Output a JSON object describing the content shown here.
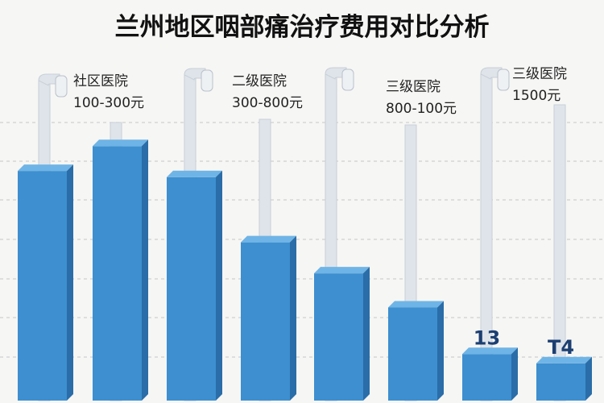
{
  "chart_data": {
    "type": "bar",
    "title": "兰州地区咽部痛治疗费用对比分析",
    "xlabel": "",
    "ylabel": "",
    "grid": true,
    "values": [
      74,
      82,
      72,
      51,
      41,
      30,
      15,
      12
    ],
    "bar_labels": [
      "",
      "",
      "",
      "",
      "",
      "",
      "13",
      "T4"
    ],
    "annotations": [
      {
        "line1": "社区医院",
        "line2": "100-300元"
      },
      {
        "line1": "二级医院",
        "line2": "300-800元"
      },
      {
        "line1": "三级医院",
        "line2": "800-100元"
      },
      {
        "line1": "三级医院",
        "line2": "1500元"
      }
    ],
    "colors": {
      "bar_front": "#3d8fd0",
      "bar_top": "#6fb4e6",
      "bar_side": "#2a6da8",
      "pipe": "#dfe4ea",
      "grid": "#d0d0d0",
      "background": "#f6f6f4"
    },
    "icons": [
      "faucet-icon"
    ]
  }
}
